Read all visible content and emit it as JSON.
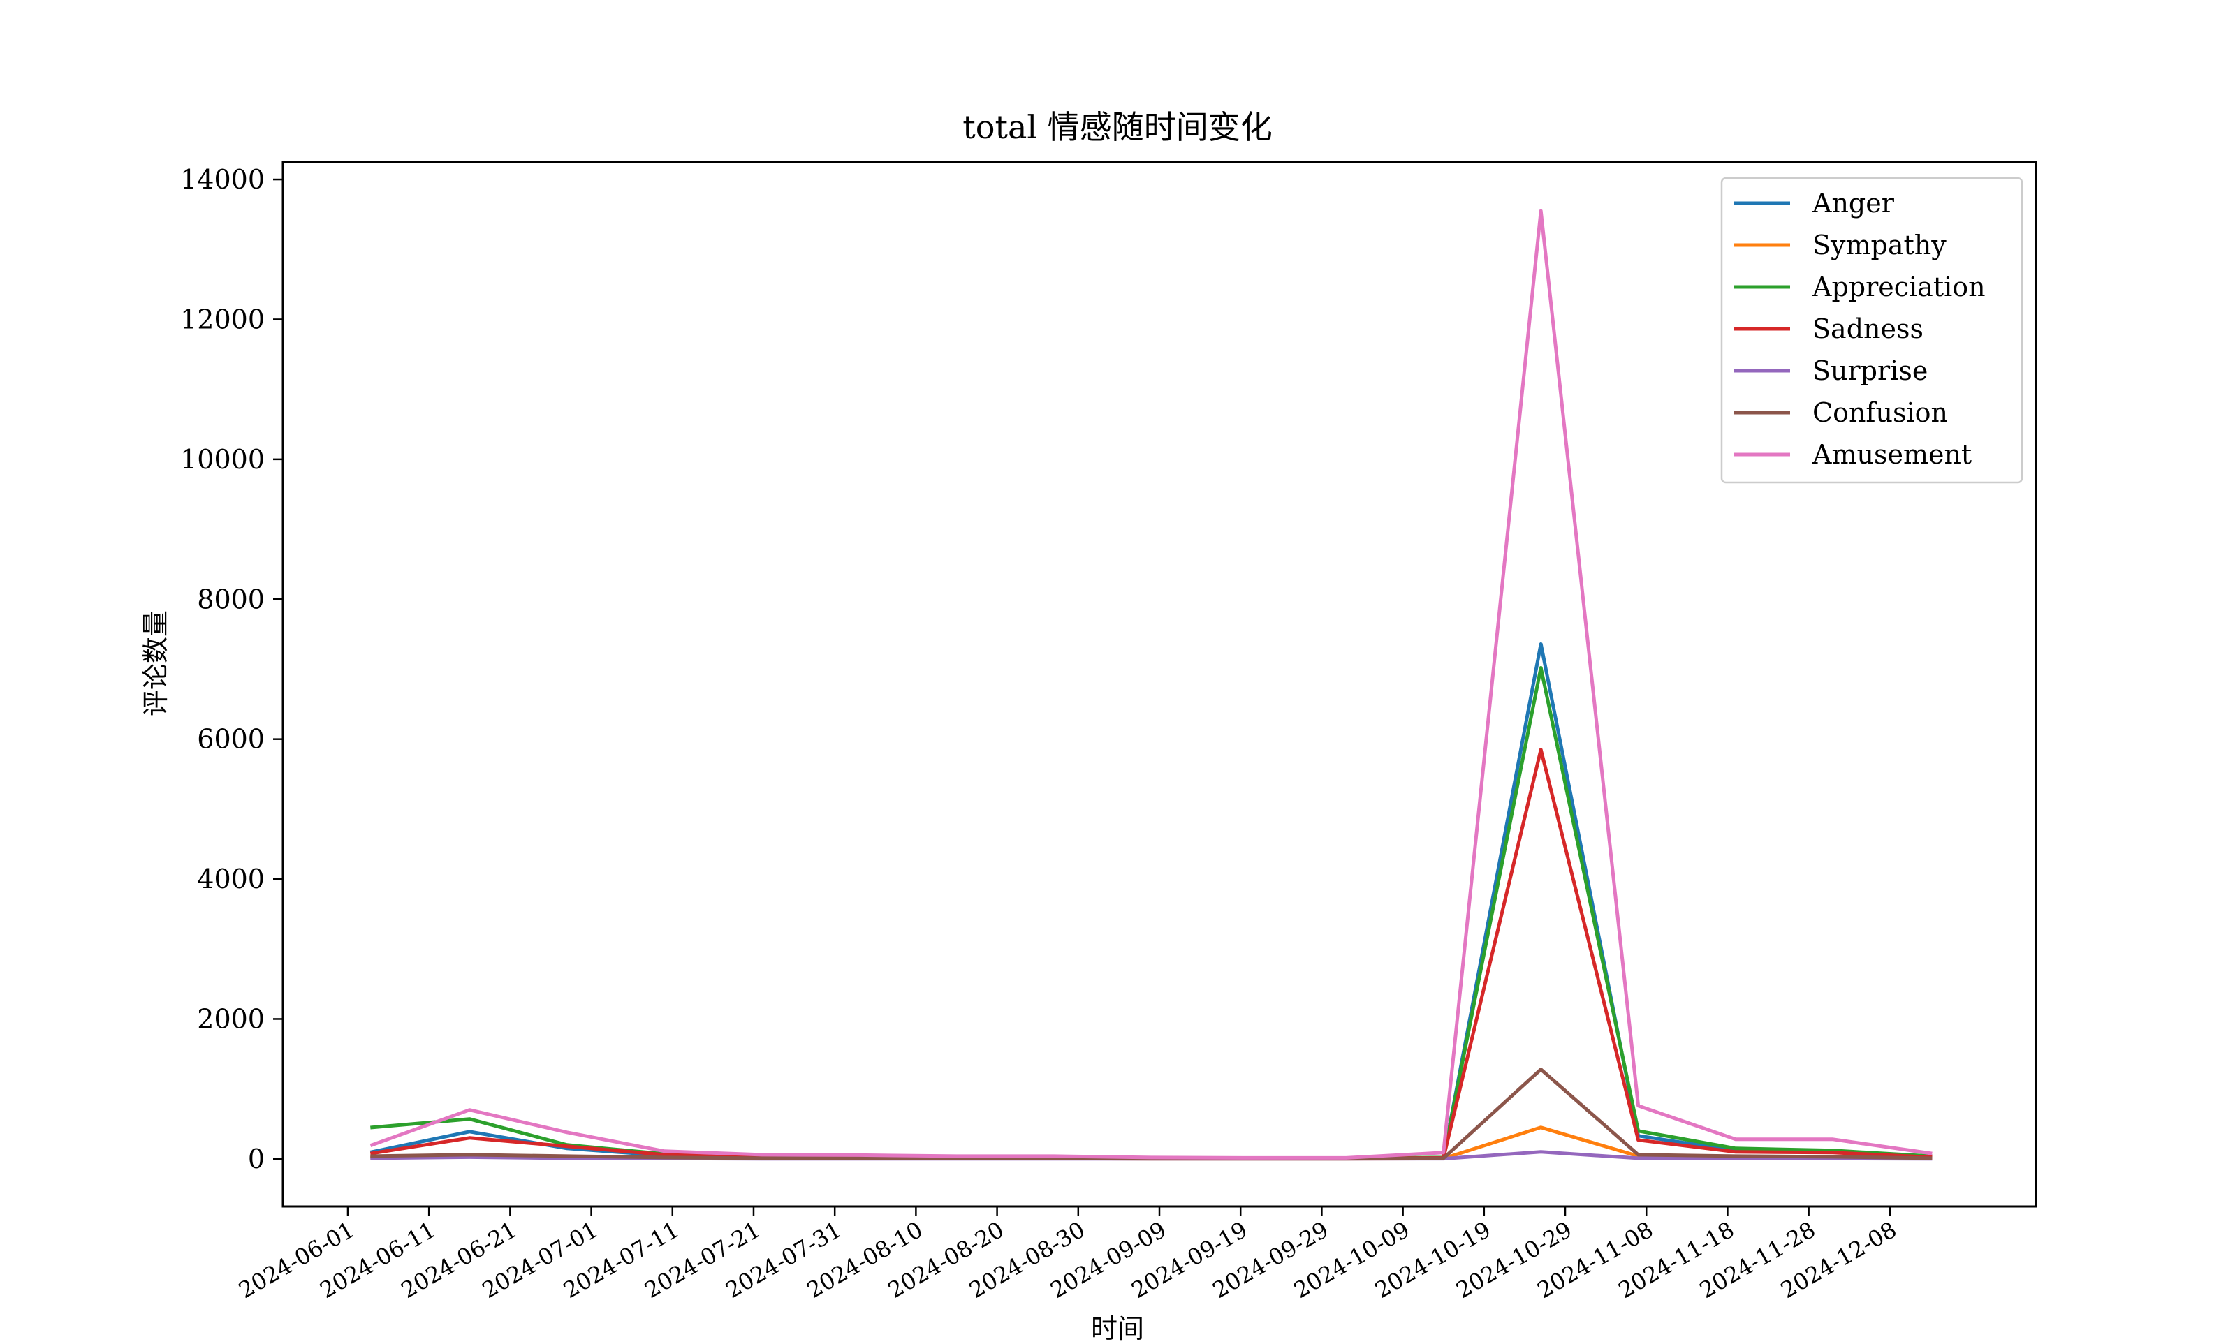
{
  "chart_data": {
    "type": "line",
    "title": "total 情感随时间变化",
    "xlabel": "时间",
    "ylabel": "评论数量",
    "x": [
      "2024-06-04",
      "2024-06-16",
      "2024-06-28",
      "2024-07-10",
      "2024-07-22",
      "2024-08-03",
      "2024-08-15",
      "2024-08-27",
      "2024-09-08",
      "2024-09-20",
      "2024-10-02",
      "2024-10-14",
      "2024-10-26",
      "2024-11-07",
      "2024-11-19",
      "2024-12-01",
      "2024-12-13"
    ],
    "x_ticks": [
      "2024-06-01",
      "2024-06-11",
      "2024-06-21",
      "2024-07-01",
      "2024-07-11",
      "2024-07-21",
      "2024-07-31",
      "2024-08-10",
      "2024-08-20",
      "2024-08-30",
      "2024-09-09",
      "2024-09-19",
      "2024-09-29",
      "2024-10-09",
      "2024-10-19",
      "2024-10-29",
      "2024-11-08",
      "2024-11-18",
      "2024-11-28",
      "2024-12-08"
    ],
    "y_ticks": [
      "0",
      "2000",
      "4000",
      "6000",
      "8000",
      "10000",
      "12000",
      "14000"
    ],
    "ylim": [
      -680,
      14250
    ],
    "xlim": [
      "2024-05-24",
      "2024-12-26"
    ],
    "grid": false,
    "legend_position": "top-right",
    "series": [
      {
        "name": "Anger",
        "color": "#1f77b4",
        "values": [
          100,
          390,
          150,
          50,
          20,
          15,
          10,
          10,
          5,
          5,
          5,
          10,
          7360,
          330,
          120,
          110,
          30
        ]
      },
      {
        "name": "Sympathy",
        "color": "#ff7f0e",
        "values": [
          20,
          60,
          30,
          10,
          5,
          5,
          5,
          5,
          2,
          2,
          2,
          5,
          450,
          40,
          20,
          15,
          5
        ]
      },
      {
        "name": "Appreciation",
        "color": "#2ca02c",
        "values": [
          450,
          570,
          200,
          70,
          30,
          25,
          20,
          15,
          10,
          10,
          10,
          20,
          7020,
          400,
          150,
          120,
          40
        ]
      },
      {
        "name": "Sadness",
        "color": "#d62728",
        "values": [
          80,
          300,
          180,
          60,
          25,
          20,
          15,
          10,
          5,
          5,
          5,
          15,
          5850,
          270,
          100,
          90,
          25
        ]
      },
      {
        "name": "Surprise",
        "color": "#9467bd",
        "values": [
          10,
          25,
          10,
          5,
          2,
          2,
          2,
          2,
          1,
          1,
          1,
          3,
          100,
          10,
          5,
          5,
          2
        ]
      },
      {
        "name": "Confusion",
        "color": "#8c564b",
        "values": [
          40,
          60,
          40,
          20,
          10,
          8,
          5,
          5,
          3,
          3,
          3,
          10,
          1280,
          60,
          40,
          30,
          10
        ]
      },
      {
        "name": "Amusement",
        "color": "#e377c2",
        "values": [
          200,
          700,
          380,
          110,
          60,
          55,
          40,
          40,
          20,
          15,
          15,
          90,
          13550,
          760,
          280,
          280,
          80
        ]
      }
    ]
  }
}
